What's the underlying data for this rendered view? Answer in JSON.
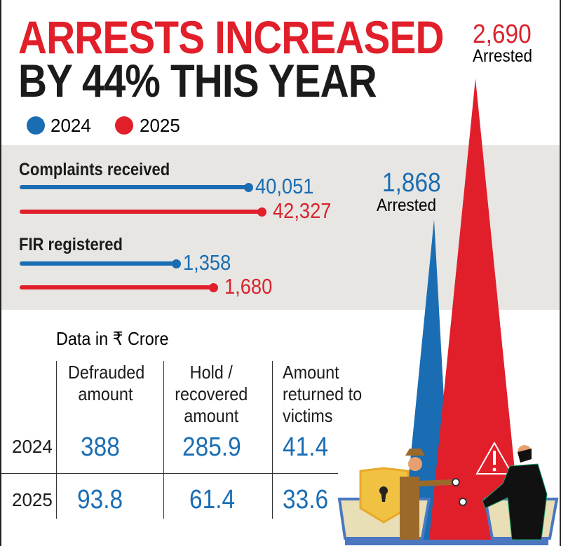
{
  "headline": {
    "line1": "ARRESTS INCREASED",
    "line2": "BY 44% THIS YEAR"
  },
  "legend": [
    {
      "label": "2024",
      "color": "#1a6db3"
    },
    {
      "label": "2025",
      "color": "#e11f2a"
    }
  ],
  "colors": {
    "blue": "#1a6db3",
    "red": "#e11f2a",
    "band": "#e7e6e3"
  },
  "chart_data": [
    {
      "type": "bar",
      "orientation": "horizontal",
      "categories": [
        "Complaints received",
        "FIR registered"
      ],
      "series": [
        {
          "name": "2024",
          "values": [
            40051,
            1358
          ],
          "labels": [
            "40,051",
            "1,358"
          ]
        },
        {
          "name": "2025",
          "values": [
            42327,
            1680
          ],
          "labels": [
            "42,327",
            "1,680"
          ]
        }
      ]
    },
    {
      "type": "bar",
      "style": "triangular spikes",
      "categories": [
        "Arrested"
      ],
      "series": [
        {
          "name": "2024",
          "values": [
            1868
          ],
          "label": "1,868",
          "sublabel": "Arrested"
        },
        {
          "name": "2025",
          "values": [
            2690
          ],
          "label": "2,690",
          "sublabel": "Arrested"
        }
      ]
    },
    {
      "type": "table",
      "caption": "Data in ₹ Crore",
      "columns": [
        "Defrauded amount",
        "Hold / recovered amount",
        "Amount returned to victims"
      ],
      "column_lines": [
        [
          "Defrauded",
          "amount"
        ],
        [
          "Hold /",
          "recovered",
          "amount"
        ],
        [
          "Amount",
          "returned to",
          "victims"
        ]
      ],
      "rows": [
        {
          "year": "2024",
          "values": [
            "388",
            "285.9",
            "41.4"
          ]
        },
        {
          "year": "2025",
          "values": [
            "93.8",
            "61.4",
            "33.6"
          ]
        }
      ]
    }
  ]
}
